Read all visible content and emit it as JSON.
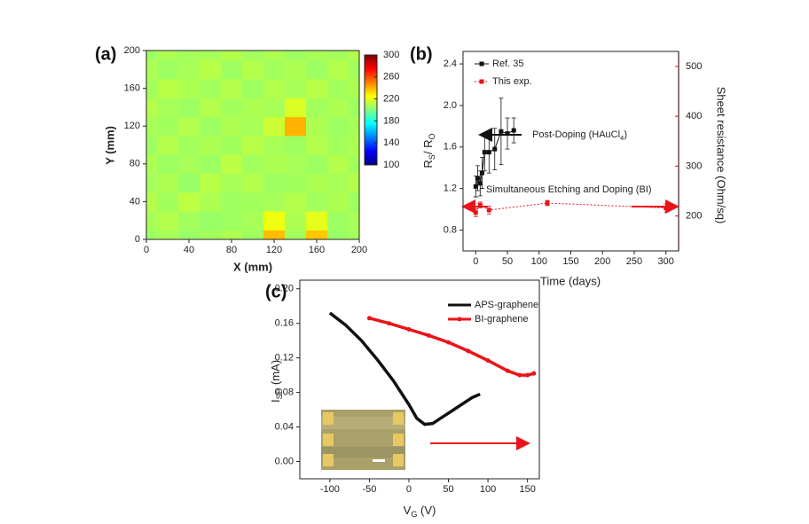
{
  "chart_data": [
    {
      "type": "heatmap",
      "panel_label": "(a)",
      "xlabel": "X (mm)",
      "ylabel": "Y (mm)",
      "colormap": "jet",
      "x": [
        0,
        20,
        40,
        60,
        80,
        100,
        120,
        140,
        160,
        180,
        200
      ],
      "y": [
        0,
        20,
        40,
        60,
        80,
        100,
        120,
        140,
        160,
        180,
        200
      ],
      "values": [
        [
          206,
          208,
          205,
          207,
          209,
          206,
          238,
          207,
          236,
          205,
          207
        ],
        [
          208,
          210,
          207,
          205,
          206,
          208,
          222,
          209,
          220,
          206,
          208
        ],
        [
          210,
          207,
          212,
          209,
          206,
          207,
          208,
          210,
          207,
          209,
          206
        ],
        [
          207,
          209,
          205,
          211,
          208,
          210,
          206,
          207,
          209,
          208,
          210
        ],
        [
          209,
          206,
          208,
          206,
          212,
          207,
          209,
          208,
          206,
          210,
          207
        ],
        [
          206,
          210,
          207,
          209,
          207,
          211,
          208,
          206,
          210,
          207,
          209
        ],
        [
          208,
          207,
          210,
          206,
          209,
          208,
          215,
          240,
          209,
          206,
          208
        ],
        [
          210,
          208,
          206,
          210,
          207,
          209,
          208,
          218,
          207,
          209,
          206
        ],
        [
          207,
          211,
          209,
          207,
          210,
          206,
          210,
          208,
          211,
          207,
          209
        ],
        [
          209,
          206,
          208,
          211,
          206,
          210,
          207,
          209,
          206,
          210,
          207
        ],
        [
          206,
          209,
          207,
          208,
          210,
          207,
          209,
          206,
          208,
          207,
          210
        ]
      ],
      "xlim": [
        0,
        200
      ],
      "ylim": [
        0,
        200
      ],
      "xticks": [
        0,
        40,
        80,
        120,
        160,
        200
      ],
      "yticks": [
        0,
        40,
        80,
        120,
        160,
        200
      ],
      "colorbar": {
        "lim": [
          100,
          300
        ],
        "ticks": [
          100,
          140,
          180,
          220,
          260,
          300
        ]
      }
    },
    {
      "type": "line",
      "panel_label": "(b)",
      "xlabel": "Time (days)",
      "ylabel": [
        "R",
        "S",
        "/ R",
        "O"
      ],
      "y2label": "Sheet resistance (Ohm/sq)",
      "y2color": "#e8141a",
      "xlim": [
        -20,
        320
      ],
      "xticks": [
        0,
        50,
        100,
        150,
        200,
        250,
        300
      ],
      "ylim": [
        0.6,
        2.52
      ],
      "yticks": [
        0.8,
        1.2,
        1.6,
        {
          "value": 2,
          "label": "2.0"
        },
        2.4
      ],
      "y2lim": [
        130,
        530
      ],
      "y2ticks": [
        200,
        300,
        400,
        500
      ],
      "legend": "upper left",
      "series": [
        {
          "name": "Ref. 35",
          "color": "#111111",
          "marker": "square",
          "dash": "solid",
          "x": [
            0,
            3,
            7,
            10,
            14,
            21,
            30,
            40,
            50,
            60
          ],
          "values": [
            1.22,
            1.3,
            1.25,
            1.35,
            1.55,
            1.55,
            1.58,
            1.75,
            1.73,
            1.76
          ],
          "errors": [
            0.1,
            0.12,
            0.12,
            0.15,
            0.18,
            0.2,
            0.2,
            0.32,
            0.15,
            0.12
          ]
        },
        {
          "name": "This exp.",
          "color": "#e8141a",
          "marker": "square",
          "dash": "dotted",
          "axis": "y2",
          "x": [
            0,
            7,
            21,
            113,
            300
          ],
          "values": [
            207,
            222,
            212,
            226,
            216
          ],
          "errors": [
            8,
            6,
            8,
            5,
            8
          ]
        }
      ],
      "annotations": [
        {
          "parts": [
            "Post-Doping (HAuCl",
            "4",
            ")"
          ],
          "color": "#111111"
        },
        {
          "parts": [
            "Simultaneous Etching and Doping (BI)"
          ],
          "color": "#e8141a"
        }
      ]
    },
    {
      "type": "line",
      "panel_label": "(c)",
      "xlabel": [
        "V",
        "G",
        " (V)"
      ],
      "ylabel": [
        "I",
        "SD",
        " (mA)"
      ],
      "xlim": [
        -138,
        165
      ],
      "xticks": [
        -100,
        -50,
        0,
        50,
        100,
        150
      ],
      "ylim": [
        -0.02,
        0.21
      ],
      "yticks": [
        {
          "value": 0,
          "label": "0.00"
        },
        0.04,
        0.08,
        0.12,
        0.16,
        {
          "value": 0.2,
          "label": "0.20"
        }
      ],
      "legend": "upper right",
      "series": [
        {
          "name": "APS-graphene",
          "color": "#111111",
          "marker": "none",
          "dash": "solid",
          "x": [
            -100,
            -80,
            -60,
            -40,
            -20,
            0,
            10,
            20,
            30,
            40,
            60,
            80,
            90
          ],
          "values": [
            0.172,
            0.158,
            0.14,
            0.118,
            0.094,
            0.066,
            0.05,
            0.043,
            0.044,
            0.05,
            0.062,
            0.074,
            0.078
          ]
        },
        {
          "name": "BI-graphene",
          "color": "#e8141a",
          "marker": "circle",
          "dash": "solid",
          "x": [
            -50,
            -25,
            0,
            25,
            50,
            75,
            100,
            125,
            140,
            150,
            158
          ],
          "values": [
            0.166,
            0.16,
            0.153,
            0.146,
            0.138,
            0.128,
            0.117,
            0.105,
            0.1,
            0.1,
            0.102
          ]
        }
      ]
    }
  ]
}
